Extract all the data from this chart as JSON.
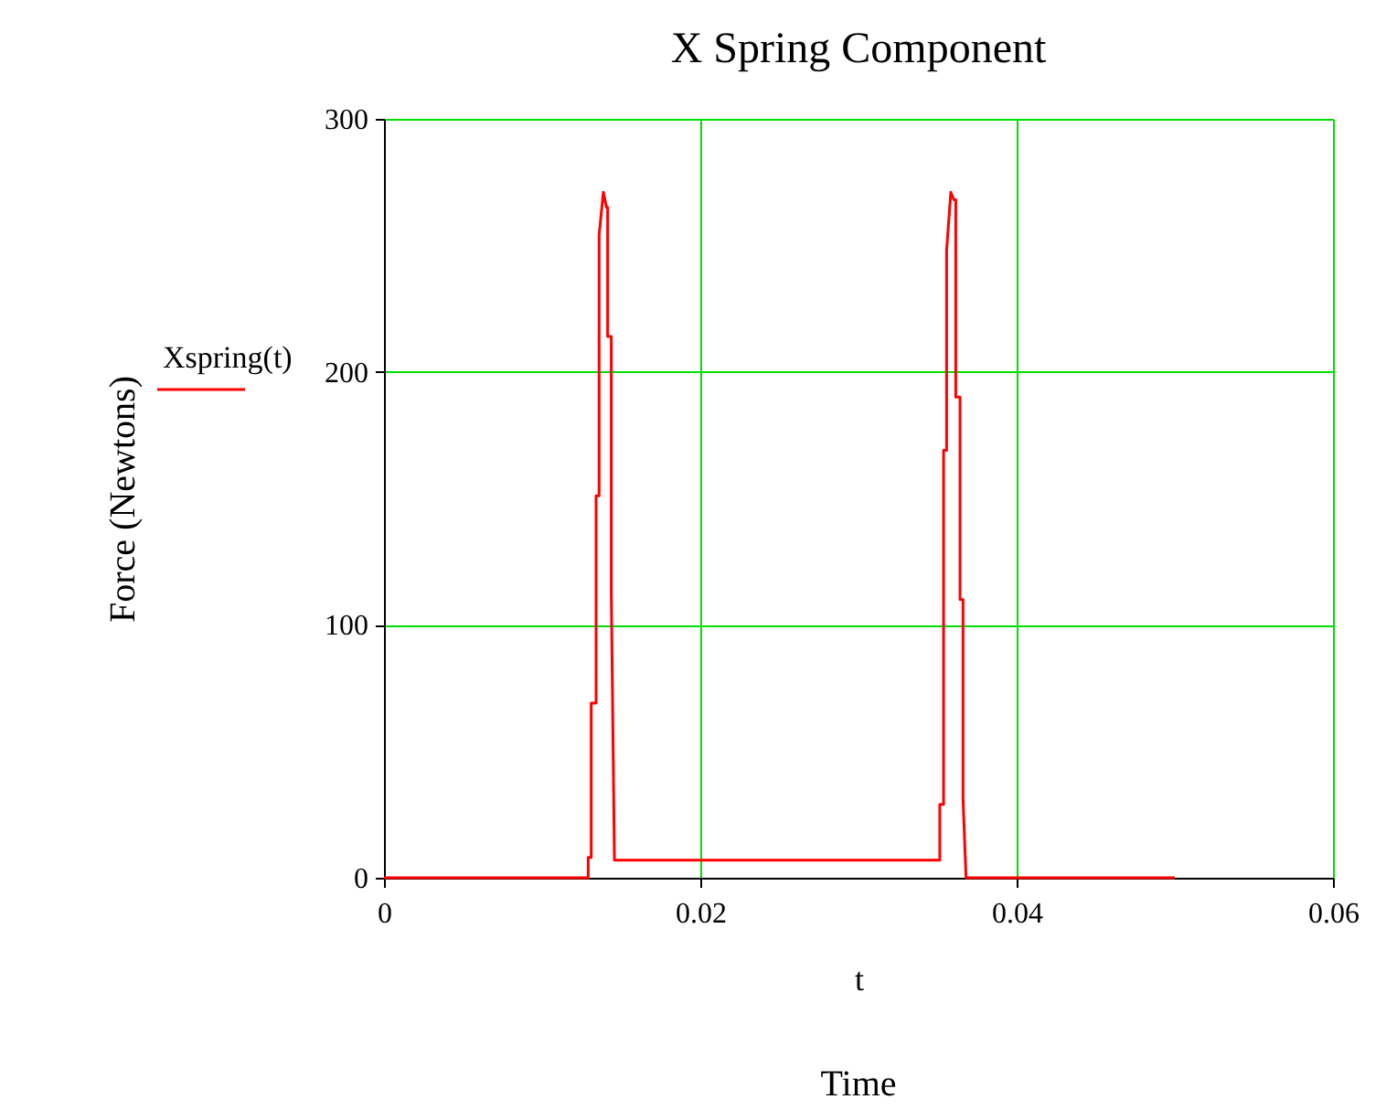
{
  "chart_data": {
    "type": "line",
    "title": "X Spring Component",
    "xlabel": "t",
    "ylabel": "Force (Newtons)",
    "annotations": [
      "Time"
    ],
    "x": [
      0,
      0.01291,
      0.01291,
      0.0131,
      0.0131,
      0.01341,
      0.01341,
      0.0136,
      0.0136,
      0.01387,
      0.01407,
      0.01414,
      0.01414,
      0.01437,
      0.01437,
      0.01457,
      0.03514,
      0.03514,
      0.03538,
      0.03538,
      0.03557,
      0.03557,
      0.03584,
      0.03603,
      0.03615,
      0.03615,
      0.03642,
      0.03642,
      0.03661,
      0.03661,
      0.0368,
      0.05
    ],
    "series": [
      {
        "name": "Xspring(t)",
        "color": "#ff0000",
        "values": [
          0,
          0,
          8,
          8,
          69,
          69,
          151,
          151,
          254,
          271,
          265,
          265,
          214,
          214,
          113,
          7,
          7,
          29,
          29,
          169,
          169,
          248,
          271,
          268,
          268,
          190,
          190,
          110,
          110,
          31,
          0,
          0
        ]
      }
    ],
    "xlim": [
      0,
      0.06
    ],
    "xticks": [
      0,
      0.02,
      0.04,
      0.06
    ],
    "ylim": [
      0,
      300
    ],
    "yticks": [
      0,
      100,
      200,
      300
    ],
    "grid": true,
    "legend": "left",
    "marker": "none",
    "line_style": "solid"
  }
}
